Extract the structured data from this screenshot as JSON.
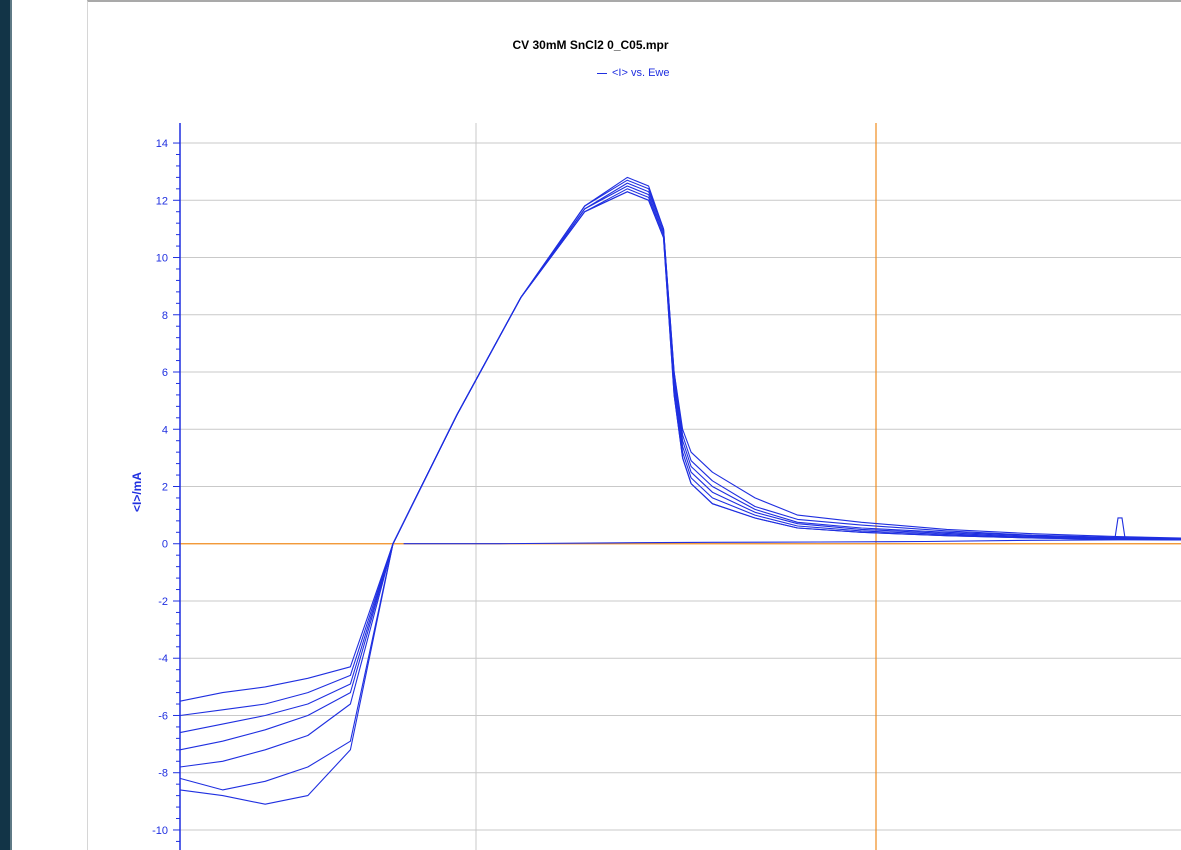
{
  "window": {
    "frame_color": "#123447"
  },
  "chart_data": {
    "type": "line",
    "title": "CV 30mM SnCl2 0_C05.mpr",
    "legend": [
      {
        "label": "<I> vs. Ewe",
        "color": "#1f2fe0"
      }
    ],
    "legend_position": "top-center",
    "xlabel": "",
    "ylabel": "<I>/mA",
    "x_ticks": [],
    "y_ticks": [
      "14",
      "12",
      "10",
      "8",
      "6",
      "4",
      "2",
      "0",
      "-2",
      "-4",
      "-6",
      "-8",
      "-10"
    ],
    "ylim": [
      -10.7,
      14.7
    ],
    "xlim": [
      -1.0,
      3.7
    ],
    "grid": true,
    "marker_color": "#f08c1e",
    "series_color": "#1f2fe0",
    "series": [
      {
        "x": [
          -1.0,
          -0.8,
          -0.6,
          -0.4,
          -0.2,
          0.0,
          0.3,
          0.6,
          0.9,
          1.1,
          1.2,
          1.27,
          1.32,
          1.36,
          1.4,
          1.5,
          1.7,
          1.9,
          2.2,
          2.6,
          3.0,
          3.4,
          3.7
        ],
        "y": [
          -5.5,
          -5.2,
          -5.0,
          -4.7,
          -4.3,
          0.0,
          4.5,
          8.6,
          11.8,
          12.8,
          12.5,
          11.0,
          6.0,
          4.0,
          3.2,
          2.5,
          1.6,
          1.0,
          0.75,
          0.5,
          0.35,
          0.25,
          0.2
        ]
      },
      {
        "x": [
          -1.0,
          -0.8,
          -0.6,
          -0.4,
          -0.2,
          0.0,
          0.3,
          0.6,
          0.9,
          1.1,
          1.2,
          1.27,
          1.32,
          1.36,
          1.4,
          1.5,
          1.7,
          1.9,
          2.2,
          2.6,
          3.0,
          3.4,
          3.7
        ],
        "y": [
          -6.0,
          -5.8,
          -5.6,
          -5.2,
          -4.6,
          0.0,
          4.5,
          8.6,
          11.8,
          12.7,
          12.4,
          11.0,
          6.0,
          3.8,
          2.9,
          2.2,
          1.3,
          0.85,
          0.65,
          0.45,
          0.3,
          0.22,
          0.18
        ]
      },
      {
        "x": [
          -1.0,
          -0.8,
          -0.6,
          -0.4,
          -0.2,
          0.0,
          0.3,
          0.6,
          0.9,
          1.1,
          1.2,
          1.27,
          1.32,
          1.36,
          1.4,
          1.5,
          1.7,
          1.9,
          2.2,
          2.6,
          3.0,
          3.4,
          3.7
        ],
        "y": [
          -6.6,
          -6.3,
          -6.0,
          -5.6,
          -4.9,
          0.0,
          4.5,
          8.6,
          11.7,
          12.6,
          12.3,
          11.0,
          5.8,
          3.6,
          2.7,
          2.0,
          1.2,
          0.75,
          0.55,
          0.4,
          0.28,
          0.2,
          0.16
        ]
      },
      {
        "x": [
          -1.0,
          -0.8,
          -0.6,
          -0.4,
          -0.2,
          0.0,
          0.3,
          0.6,
          0.9,
          1.1,
          1.2,
          1.27,
          1.32,
          1.36,
          1.4,
          1.5,
          1.7,
          1.9,
          2.2,
          2.6,
          3.0,
          3.4,
          3.7
        ],
        "y": [
          -7.2,
          -6.9,
          -6.5,
          -6.0,
          -5.2,
          0.0,
          4.5,
          8.6,
          11.7,
          12.5,
          12.2,
          10.9,
          5.6,
          3.4,
          2.5,
          1.8,
          1.1,
          0.7,
          0.5,
          0.36,
          0.25,
          0.18,
          0.15
        ]
      },
      {
        "x": [
          -1.0,
          -0.8,
          -0.6,
          -0.4,
          -0.2,
          0.0,
          0.3,
          0.6,
          0.9,
          1.1,
          1.2,
          1.27,
          1.32,
          1.36,
          1.4,
          1.5,
          1.7,
          1.9,
          2.2,
          2.6,
          3.0,
          3.4,
          3.7
        ],
        "y": [
          -7.8,
          -7.6,
          -7.2,
          -6.7,
          -5.6,
          0.0,
          4.5,
          8.6,
          11.6,
          12.4,
          12.1,
          10.8,
          5.4,
          3.2,
          2.3,
          1.6,
          1.0,
          0.62,
          0.45,
          0.32,
          0.22,
          0.16,
          0.14
        ]
      },
      {
        "x": [
          -1.0,
          -0.8,
          -0.6,
          -0.4,
          -0.2,
          0.0,
          0.3,
          0.6,
          0.9,
          1.1,
          1.2,
          1.27,
          1.32,
          1.36,
          1.4,
          1.5,
          1.7,
          1.9,
          2.2,
          2.6,
          3.0,
          3.4,
          3.7
        ],
        "y": [
          -8.6,
          -8.8,
          -9.1,
          -8.8,
          -7.2,
          0.0,
          4.5,
          8.6,
          11.6,
          12.3,
          12.0,
          10.7,
          5.2,
          3.0,
          2.1,
          1.4,
          0.9,
          0.55,
          0.4,
          0.28,
          0.2,
          0.15,
          0.13
        ]
      },
      {
        "x": [
          -1.0,
          -0.8,
          -0.6,
          -0.4,
          -0.2,
          0.0,
          0.3,
          0.6,
          0.9,
          1.1,
          1.2,
          1.27,
          1.32,
          1.36,
          1.4,
          1.5,
          1.7,
          1.9,
          2.2,
          2.6,
          3.0,
          3.4,
          3.7
        ],
        "y": [
          -8.2,
          -8.6,
          -8.3,
          -7.8,
          -6.9,
          0.0,
          4.5,
          8.6,
          11.6,
          12.3,
          12.0,
          10.7,
          5.2,
          3.0,
          2.1,
          1.4,
          0.9,
          0.55,
          0.4,
          0.28,
          0.2,
          0.15,
          0.13
        ]
      },
      {
        "x": [
          0.05,
          0.5,
          1.0,
          1.5,
          2.0,
          2.5,
          3.0,
          3.7
        ],
        "y": [
          0.0,
          0.0,
          0.03,
          0.05,
          0.06,
          0.08,
          0.12,
          0.15
        ]
      }
    ]
  }
}
